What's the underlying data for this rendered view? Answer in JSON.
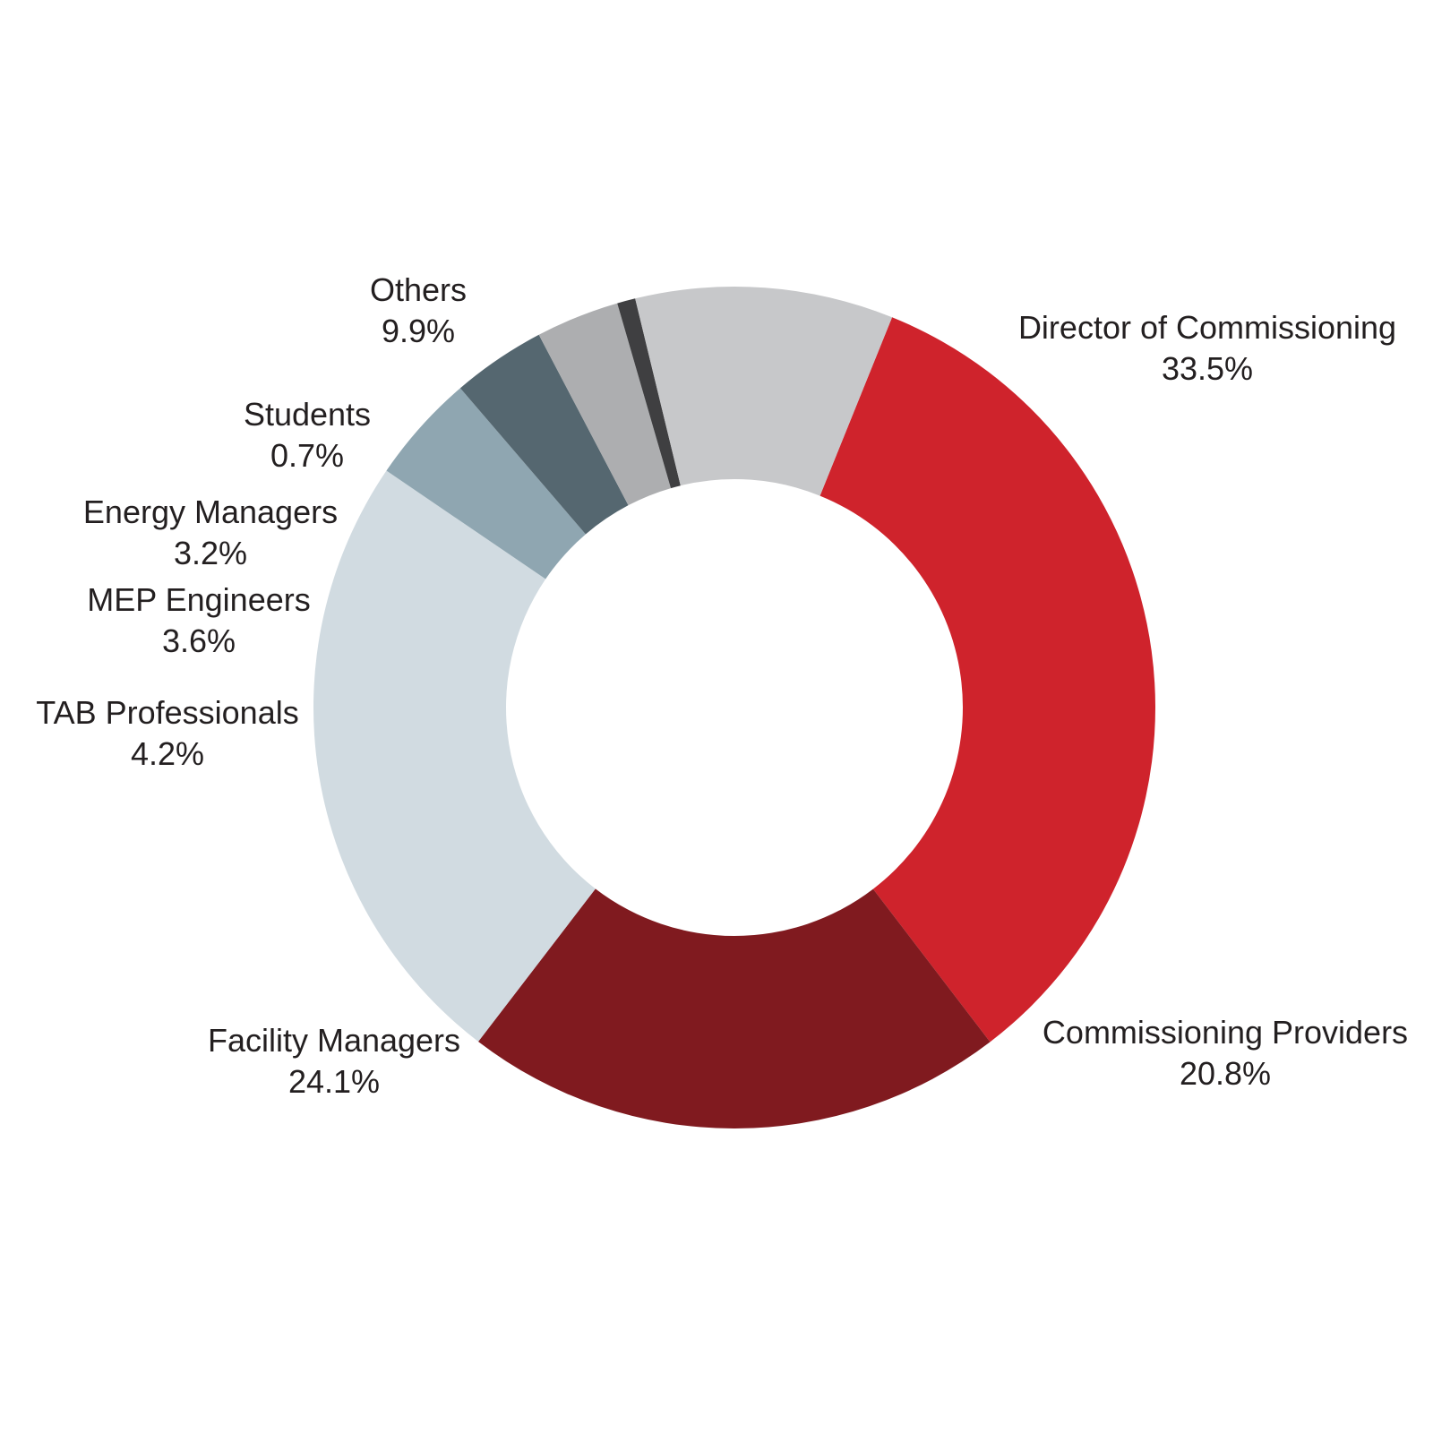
{
  "chart_data": {
    "type": "pie",
    "donut": true,
    "title": "",
    "slices": [
      {
        "label": "Director of Commissioning",
        "value": 33.5,
        "value_label": "33.5%",
        "color": "#cf232c"
      },
      {
        "label": "Commissioning Providers",
        "value": 20.8,
        "value_label": "20.8%",
        "color": "#801a1f"
      },
      {
        "label": "Facility Managers",
        "value": 24.1,
        "value_label": "24.1%",
        "color": "#d1dbe1"
      },
      {
        "label": "TAB Professionals",
        "value": 4.2,
        "value_label": "4.2%",
        "color": "#8fa6b1"
      },
      {
        "label": "MEP Engineers",
        "value": 3.6,
        "value_label": "3.6%",
        "color": "#556770"
      },
      {
        "label": "Energy Managers",
        "value": 3.2,
        "value_label": "3.2%",
        "color": "#adaeb0"
      },
      {
        "label": "Students",
        "value": 0.7,
        "value_label": "0.7%",
        "color": "#3f3f41"
      },
      {
        "label": "Others",
        "value": 9.9,
        "value_label": "9.9%",
        "color": "#c7c8ca"
      }
    ],
    "start_angle_deg": 22,
    "direction": "clockwise",
    "legend": "none",
    "labels": "outside"
  }
}
